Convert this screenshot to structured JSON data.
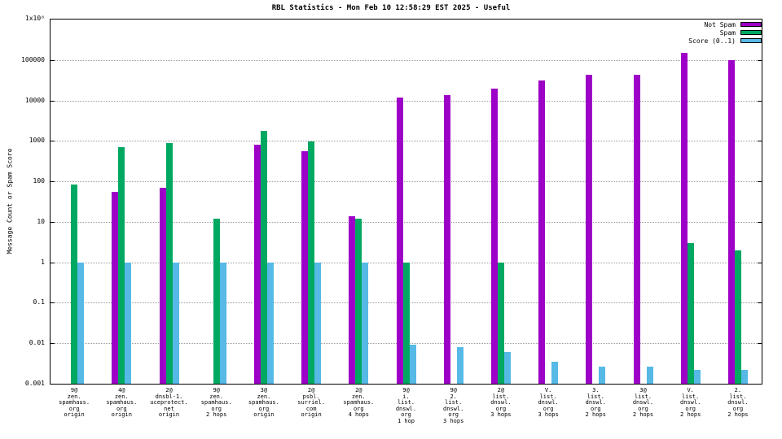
{
  "chart_data": {
    "type": "bar",
    "title": "RBL Statistics - Mon Feb 10 12:58:29 EST 2025 - Useful",
    "ylabel": "Message Count or Spam Score",
    "y_scale": "log",
    "ylim": [
      0.001,
      1000000
    ],
    "y_top_tick_label": "1x10⁶",
    "grid": "horizontal-dotted",
    "legend_position": "top-right",
    "y_ticks": [
      {
        "value": 100000,
        "label": "100000"
      },
      {
        "value": 10000,
        "label": "10000"
      },
      {
        "value": 1000,
        "label": "1000"
      },
      {
        "value": 100,
        "label": "100"
      },
      {
        "value": 10,
        "label": "10"
      },
      {
        "value": 1,
        "label": "1"
      },
      {
        "value": 0.1,
        "label": "0.1"
      },
      {
        "value": 0.01,
        "label": "0.01"
      },
      {
        "value": 0.001,
        "label": "0.001"
      }
    ],
    "categories": [
      [
        "9@",
        "zen.",
        "spamhaus.",
        "org",
        "origin"
      ],
      [
        "4@",
        "zen.",
        "spamhaus.",
        "org",
        "origin"
      ],
      [
        "2@",
        "dnsbl-1.",
        "uceprotect.",
        "net",
        "origin"
      ],
      [
        "9@",
        "zen.",
        "spamhaus.",
        "org",
        "2 hops"
      ],
      [
        "3@",
        "zen.",
        "spamhaus.",
        "org",
        "origin"
      ],
      [
        "2@",
        "psbl.",
        "surriel.",
        "com",
        "origin"
      ],
      [
        "2@",
        "zen.",
        "spamhaus.",
        "org",
        "4 hops"
      ],
      [
        "9@",
        "i.",
        "list.",
        "dnswl.",
        "org",
        "1 hop"
      ],
      [
        "9@",
        "2.",
        "list.",
        "dnswl.",
        "org",
        "3 hops"
      ],
      [
        "2@",
        "list.",
        "dnswl.",
        "org",
        "3 hops"
      ],
      [
        "V.",
        "list.",
        "dnswl.",
        "org",
        "3 hops"
      ],
      [
        "3.",
        "list.",
        "dnswl.",
        "org",
        "2 hops"
      ],
      [
        "3@",
        "list.",
        "dnswl.",
        "org",
        "2 hops"
      ],
      [
        "V.",
        "list.",
        "dnswl.",
        "org",
        "2 hops"
      ],
      [
        "2.",
        "list.",
        "dnswl.",
        "org",
        "2 hops"
      ]
    ],
    "series": [
      {
        "name": "Not Spam",
        "color": "#9d00c6",
        "values": [
          null,
          55,
          70,
          null,
          800,
          550,
          14,
          12000,
          13500,
          20000,
          31000,
          43000,
          43000,
          150000,
          100000
        ]
      },
      {
        "name": "Spam",
        "color": "#00a862",
        "values": [
          85,
          700,
          900,
          12,
          1800,
          950,
          12,
          1,
          null,
          1,
          null,
          null,
          null,
          3,
          2
        ]
      },
      {
        "name": "Score (0..1)",
        "color": "#56b9e6",
        "values": [
          1,
          1,
          1,
          1,
          1,
          1,
          1,
          0.009,
          0.008,
          0.006,
          0.0035,
          0.0027,
          0.0027,
          0.0022,
          0.0022
        ]
      }
    ]
  }
}
